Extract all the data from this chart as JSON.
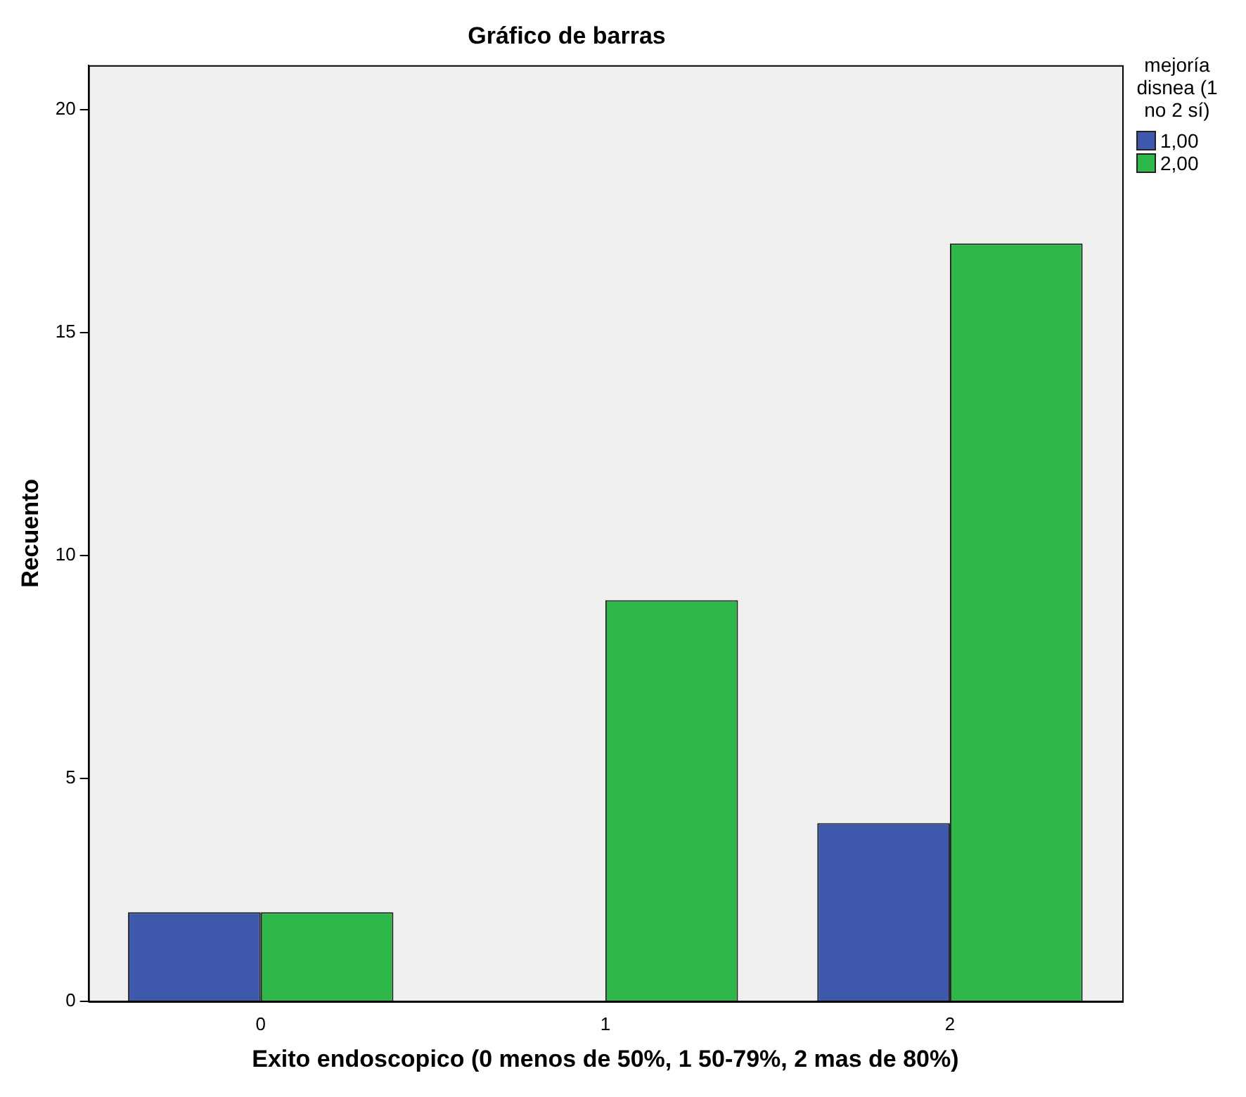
{
  "chart_data": {
    "type": "bar",
    "title": "Gráfico de barras",
    "xlabel": "Exito endoscopico (0 menos de 50%, 1 50-79%, 2 mas de 80%)",
    "ylabel": "Recuento",
    "legend_title": "mejoría disnea (1 no 2 sí)",
    "categories": [
      "0",
      "1",
      "2"
    ],
    "series": [
      {
        "name": "1,00",
        "color": "#3e58ac",
        "values": [
          2,
          0,
          4
        ]
      },
      {
        "name": "2,00",
        "color": "#2fb84a",
        "values": [
          2,
          9,
          17
        ]
      }
    ],
    "ylim": [
      0,
      21
    ],
    "yticks": [
      0,
      5,
      10,
      15,
      20
    ],
    "grid": false,
    "legend": "top right"
  }
}
